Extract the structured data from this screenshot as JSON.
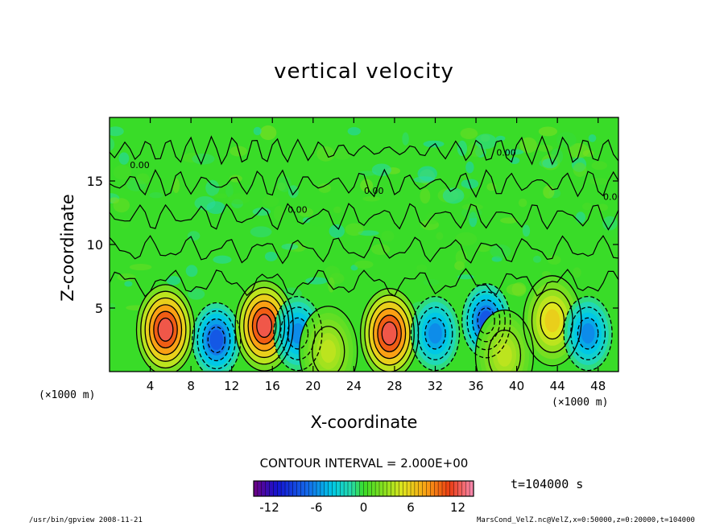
{
  "chart_data": {
    "type": "heatmap",
    "title": "vertical velocity",
    "xlabel": "X-coordinate",
    "ylabel": "Z-coordinate",
    "x_unit": "(×1000 m)",
    "xlim": [
      0,
      50
    ],
    "ylim": [
      0,
      20
    ],
    "x_ticks": [
      4,
      8,
      12,
      16,
      20,
      24,
      28,
      32,
      36,
      40,
      44,
      48
    ],
    "y_ticks": [
      5,
      10,
      15
    ],
    "contour_label": "0.00",
    "features": [
      {
        "kind": "updraft",
        "x": 5.5,
        "z": 3.3,
        "max": 12
      },
      {
        "kind": "downdraft",
        "x": 10.5,
        "z": 2.5,
        "min": -8
      },
      {
        "kind": "updraft",
        "x": 15.2,
        "z": 3.6,
        "max": 12
      },
      {
        "kind": "downdraft",
        "x": 18.5,
        "z": 3.0,
        "min": -6
      },
      {
        "kind": "updraft",
        "x": 21.5,
        "z": 1.6,
        "max": 4
      },
      {
        "kind": "updraft",
        "x": 27.5,
        "z": 3.0,
        "max": 12
      },
      {
        "kind": "downdraft",
        "x": 32.0,
        "z": 3.0,
        "min": -6
      },
      {
        "kind": "downdraft",
        "x": 37.0,
        "z": 4.0,
        "min": -8
      },
      {
        "kind": "updraft",
        "x": 38.8,
        "z": 1.3,
        "max": 4
      },
      {
        "kind": "updraft",
        "x": 43.5,
        "z": 4.0,
        "max": 6
      },
      {
        "kind": "downdraft",
        "x": 47.0,
        "z": 3.0,
        "min": -6
      }
    ],
    "colorbar": {
      "ticks": [
        -12,
        -6,
        0,
        6,
        12
      ],
      "range": [
        -14,
        14
      ],
      "contour_interval": "CONTOUR INTERVAL = 2.000E+00"
    }
  },
  "annotations": {
    "time": "t=104000  s",
    "footer_left": "/usr/bin/gpview   2008-11-21",
    "footer_right": "MarsCond_VelZ.nc@VelZ,x=0:50000,z=0:20000,t=104000"
  },
  "colors": {
    "background_field": "#39dc28",
    "positive_core": "#e8321e",
    "negative_core": "#1c6ee8"
  }
}
